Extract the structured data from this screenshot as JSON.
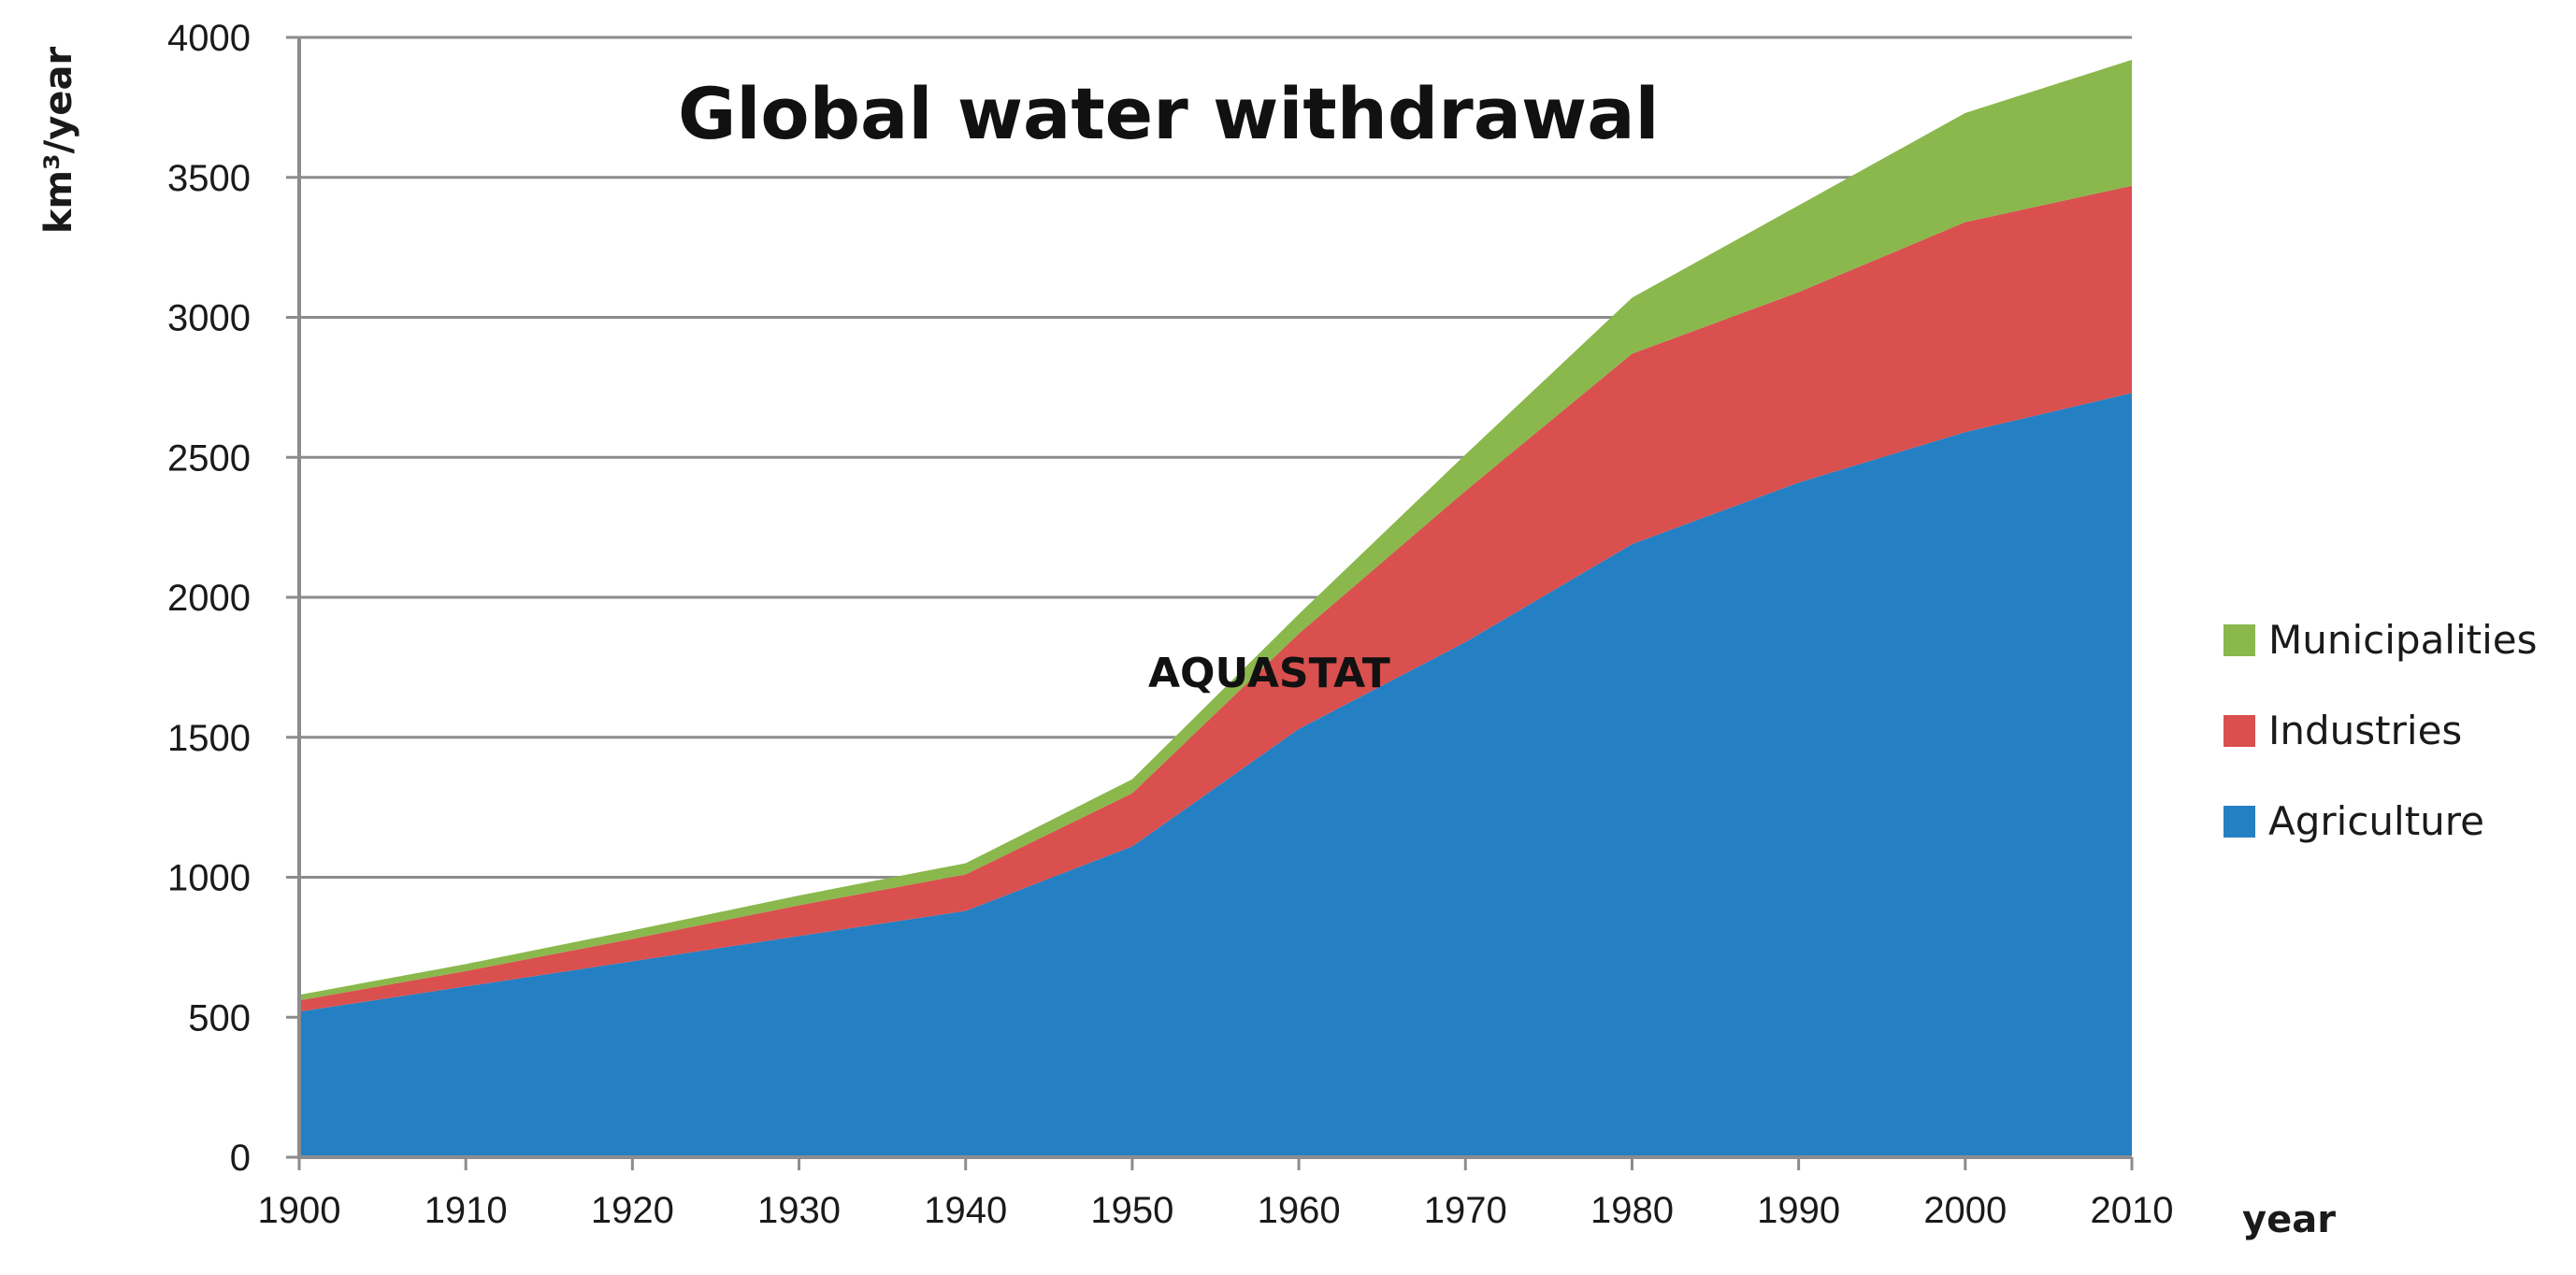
{
  "chart_data": {
    "type": "area",
    "stacked": true,
    "title": "Global water withdrawal",
    "annotation": "AQUASTAT",
    "xlabel": "year",
    "ylabel": "km³/year",
    "x": [
      1900,
      1910,
      1920,
      1930,
      1940,
      1950,
      1960,
      1970,
      1980,
      1990,
      2000,
      2010
    ],
    "x_tick_labels": [
      "1900",
      "1910",
      "1920",
      "1930",
      "1940",
      "1950",
      "1960",
      "1970",
      "1980",
      "1990",
      "2000",
      "2010"
    ],
    "y_ticks": [
      0,
      500,
      1000,
      1500,
      2000,
      2500,
      3000,
      3500,
      4000
    ],
    "y_tick_labels": [
      "0",
      "500",
      "1000",
      "1500",
      "2000",
      "2500",
      "3000",
      "3500",
      "4000"
    ],
    "xlim": [
      1900,
      2010
    ],
    "ylim": [
      0,
      4000
    ],
    "grid": true,
    "legend_position": "right",
    "series": [
      {
        "name": "Agriculture",
        "color": "#2480c3",
        "values": [
          520,
          610,
          700,
          790,
          880,
          1110,
          1530,
          1840,
          2190,
          2410,
          2590,
          2730
        ]
      },
      {
        "name": "Industries",
        "color": "#d9504f",
        "values": [
          40,
          55,
          80,
          110,
          130,
          190,
          340,
          540,
          680,
          680,
          750,
          740
        ]
      },
      {
        "name": "Municipalities",
        "color": "#8ab84c",
        "values": [
          20,
          25,
          30,
          35,
          40,
          50,
          70,
          130,
          200,
          310,
          390,
          450
        ]
      }
    ],
    "legend_order": [
      "Municipalities",
      "Industries",
      "Agriculture"
    ]
  }
}
